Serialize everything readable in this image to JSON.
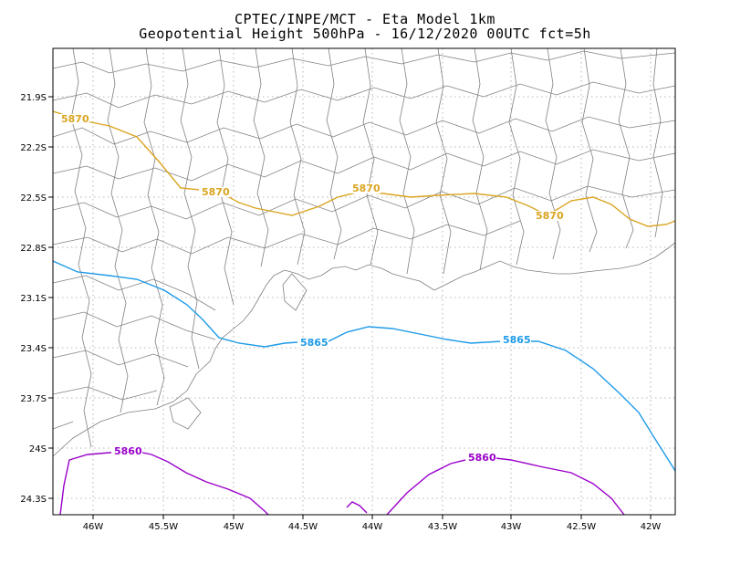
{
  "header": {
    "line1": "CPTEC/INPE/MCT -  Eta Model 1km",
    "line2": "Geopotential Height 500hPa - 16/12/2020 00UTC fct=5h"
  },
  "map": {
    "x_ticks": [
      "46W",
      "45.5W",
      "45W",
      "44.5W",
      "44W",
      "43.5W",
      "43W",
      "42.5W",
      "42W"
    ],
    "y_ticks": [
      "21.9S",
      "22.2S",
      "22.5S",
      "22.8S",
      "23.1S",
      "23.4S",
      "23.7S",
      "24S",
      "24.3S"
    ],
    "grid": "dotted",
    "colors": {
      "boundaries": "#808080",
      "frame": "#000000",
      "contour_5870": "#DAA520",
      "contour_5865": "#1E9BE8",
      "contour_5860": "#9A00C8"
    },
    "contours": [
      {
        "level": "5870",
        "labels": [
          "5870",
          "5870",
          "5870",
          "5870"
        ]
      },
      {
        "level": "5865",
        "labels": [
          "5865",
          "5865"
        ]
      },
      {
        "level": "5860",
        "labels": [
          "5860",
          "5860"
        ]
      }
    ]
  }
}
